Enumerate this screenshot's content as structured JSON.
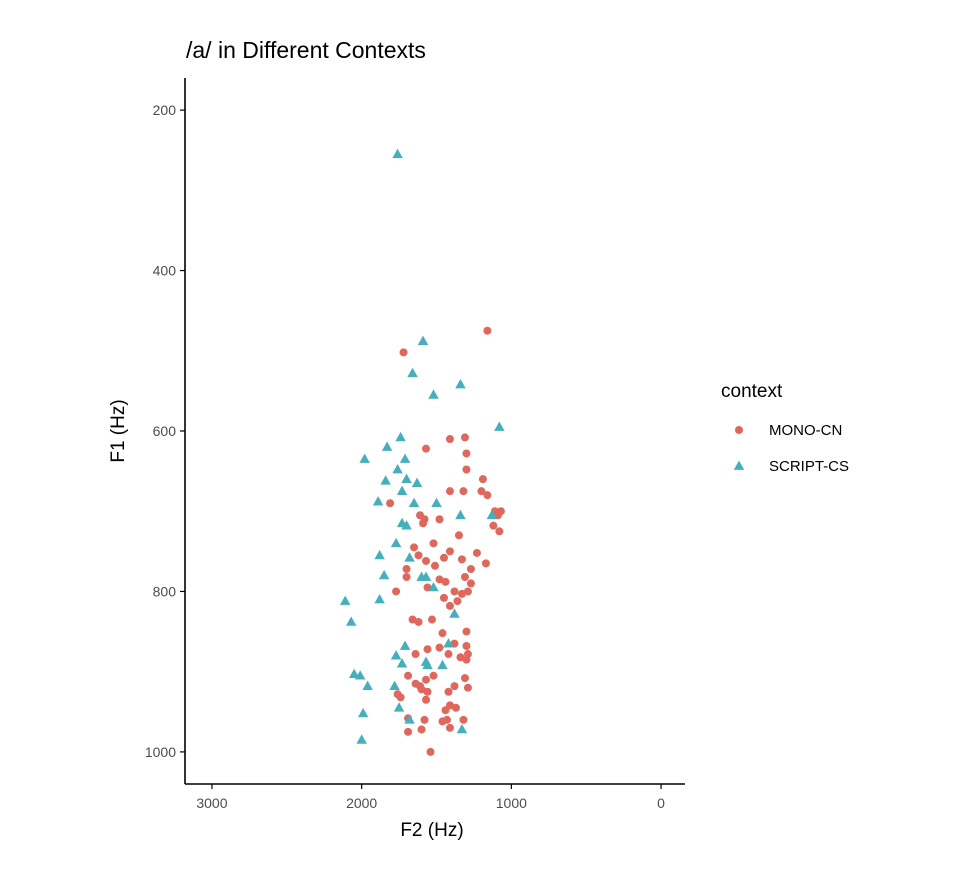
{
  "chart_data": {
    "type": "scatter",
    "title": "/a/ in Different Contexts",
    "xlabel": "F2 (Hz)",
    "ylabel": "F1 (Hz)",
    "x_reversed": true,
    "y_reversed": true,
    "xlim": [
      3180,
      -160
    ],
    "ylim": [
      160,
      1040
    ],
    "x_ticks": [
      3000,
      2000,
      1000,
      0
    ],
    "y_ticks": [
      200,
      400,
      600,
      800,
      1000
    ],
    "grid": false,
    "legend": {
      "title": "context",
      "position": "right",
      "entries": [
        "MONO-CN",
        "SCRIPT-CS"
      ]
    },
    "colors": {
      "MONO-CN": "#e0675c",
      "SCRIPT-CS": "#45b0bc"
    },
    "series": [
      {
        "name": "MONO-CN",
        "marker": "circle",
        "points": [
          [
            1160,
            475
          ],
          [
            1720,
            502
          ],
          [
            1810,
            690
          ],
          [
            1410,
            610
          ],
          [
            1310,
            608
          ],
          [
            1300,
            628
          ],
          [
            1570,
            622
          ],
          [
            1300,
            648
          ],
          [
            1190,
            660
          ],
          [
            1410,
            675
          ],
          [
            1320,
            675
          ],
          [
            1160,
            680
          ],
          [
            1200,
            675
          ],
          [
            1110,
            700
          ],
          [
            1610,
            705
          ],
          [
            1580,
            710
          ],
          [
            1480,
            710
          ],
          [
            1590,
            715
          ],
          [
            1090,
            705
          ],
          [
            1070,
            700
          ],
          [
            1120,
            718
          ],
          [
            1080,
            725
          ],
          [
            1350,
            730
          ],
          [
            1230,
            752
          ],
          [
            1170,
            765
          ],
          [
            1410,
            750
          ],
          [
            1520,
            740
          ],
          [
            1650,
            745
          ],
          [
            1620,
            755
          ],
          [
            1570,
            762
          ],
          [
            1510,
            768
          ],
          [
            1450,
            758
          ],
          [
            1330,
            760
          ],
          [
            1270,
            772
          ],
          [
            1700,
            772
          ],
          [
            1700,
            782
          ],
          [
            1480,
            785
          ],
          [
            1440,
            788
          ],
          [
            1310,
            782
          ],
          [
            1270,
            790
          ],
          [
            1770,
            800
          ],
          [
            1560,
            795
          ],
          [
            1450,
            808
          ],
          [
            1410,
            818
          ],
          [
            1380,
            800
          ],
          [
            1360,
            812
          ],
          [
            1330,
            803
          ],
          [
            1290,
            800
          ],
          [
            1660,
            835
          ],
          [
            1620,
            838
          ],
          [
            1530,
            835
          ],
          [
            1460,
            852
          ],
          [
            1300,
            850
          ],
          [
            1380,
            865
          ],
          [
            1300,
            868
          ],
          [
            1640,
            878
          ],
          [
            1560,
            872
          ],
          [
            1480,
            870
          ],
          [
            1420,
            878
          ],
          [
            1340,
            882
          ],
          [
            1290,
            878
          ],
          [
            1300,
            885
          ],
          [
            1690,
            905
          ],
          [
            1640,
            915
          ],
          [
            1610,
            918
          ],
          [
            1570,
            910
          ],
          [
            1560,
            925
          ],
          [
            1520,
            905
          ],
          [
            1420,
            925
          ],
          [
            1380,
            918
          ],
          [
            1310,
            908
          ],
          [
            1290,
            920
          ],
          [
            1760,
            928
          ],
          [
            1740,
            932
          ],
          [
            1600,
            922
          ],
          [
            1570,
            935
          ],
          [
            1410,
            942
          ],
          [
            1440,
            948
          ],
          [
            1370,
            945
          ],
          [
            1690,
            958
          ],
          [
            1580,
            960
          ],
          [
            1460,
            962
          ],
          [
            1430,
            960
          ],
          [
            1320,
            960
          ],
          [
            1410,
            970
          ],
          [
            1600,
            972
          ],
          [
            1690,
            975
          ],
          [
            1540,
            1000
          ]
        ]
      },
      {
        "name": "SCRIPT-CS",
        "marker": "triangle",
        "points": [
          [
            1760,
            255
          ],
          [
            1590,
            488
          ],
          [
            1660,
            528
          ],
          [
            1340,
            542
          ],
          [
            1520,
            555
          ],
          [
            1080,
            595
          ],
          [
            1830,
            620
          ],
          [
            1740,
            608
          ],
          [
            1980,
            635
          ],
          [
            1710,
            635
          ],
          [
            1700,
            660
          ],
          [
            1760,
            648
          ],
          [
            1840,
            662
          ],
          [
            1630,
            665
          ],
          [
            1730,
            675
          ],
          [
            1890,
            688
          ],
          [
            1650,
            690
          ],
          [
            1500,
            690
          ],
          [
            1340,
            705
          ],
          [
            1130,
            705
          ],
          [
            1730,
            715
          ],
          [
            1700,
            718
          ],
          [
            1770,
            740
          ],
          [
            1880,
            755
          ],
          [
            1680,
            758
          ],
          [
            1850,
            780
          ],
          [
            1600,
            782
          ],
          [
            1570,
            782
          ],
          [
            1520,
            795
          ],
          [
            2110,
            812
          ],
          [
            1880,
            810
          ],
          [
            1380,
            828
          ],
          [
            2070,
            838
          ],
          [
            1710,
            868
          ],
          [
            1420,
            865
          ],
          [
            1770,
            880
          ],
          [
            1730,
            890
          ],
          [
            1570,
            888
          ],
          [
            1560,
            892
          ],
          [
            1460,
            892
          ],
          [
            2050,
            903
          ],
          [
            2010,
            905
          ],
          [
            1960,
            918
          ],
          [
            1780,
            918
          ],
          [
            1750,
            945
          ],
          [
            1990,
            952
          ],
          [
            1680,
            960
          ],
          [
            1330,
            972
          ],
          [
            2000,
            985
          ]
        ]
      }
    ]
  }
}
